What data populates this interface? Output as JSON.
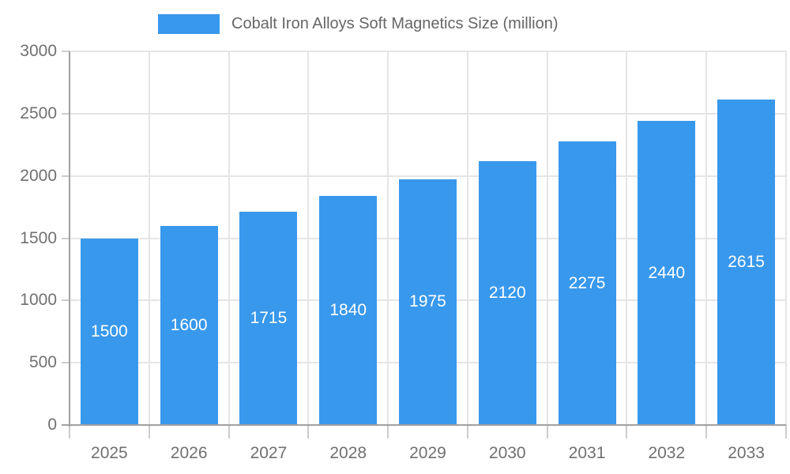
{
  "legend": {
    "label": "Cobalt Iron Alloys Soft Magnetics Size (million)",
    "swatch_color": "#3898ec"
  },
  "chart_data": {
    "type": "bar",
    "title": "Cobalt Iron Alloys Soft Magnetics Size (million)",
    "categories": [
      "2025",
      "2026",
      "2027",
      "2028",
      "2029",
      "2030",
      "2031",
      "2032",
      "2033"
    ],
    "values": [
      1500,
      1600,
      1715,
      1840,
      1975,
      2120,
      2275,
      2440,
      2615
    ],
    "xlabel": "",
    "ylabel": "",
    "ylim": [
      0,
      3000
    ],
    "yticks": [
      0,
      500,
      1000,
      1500,
      2000,
      2500,
      3000
    ],
    "grid": true,
    "legend_position": "top",
    "value_labels": "inside-middle",
    "colors": {
      "bar": "#3898ec",
      "value_label": "#ffffff",
      "grid": "#e5e5e5",
      "tick": "#cccccc",
      "axis_line": "#a0a0a0",
      "axis_text": "#707070",
      "legend_text": "#666666"
    }
  }
}
